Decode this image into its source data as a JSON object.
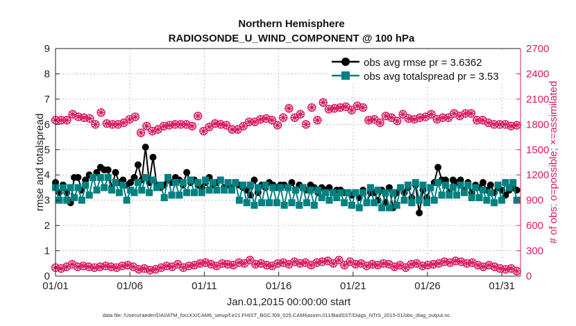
{
  "chart_data": {
    "type": "line",
    "title_lines": [
      "Northern Hemisphere",
      "RADIOSONDE_U_WIND_COMPONENT @ 100 hPa"
    ],
    "xlabel": "Jan.01,2015 00:00:00 start",
    "ylabel_left": "rmse and totalspread",
    "ylabel_right": "# of obs: o=possible; ×=assimilated",
    "footer": "data file: /Users/raeder/DAI/ATM_forcXX/CAM6_setup/f.e21.FHIST_BGC.f09_025.CAM6assim.011/BadSST/Diags_NTrS_2015-01/obs_diag_output.nc",
    "x_tick_labels": [
      "01/01",
      "01/06",
      "01/11",
      "01/16",
      "01/21",
      "01/26",
      "01/31"
    ],
    "x_tick_days": [
      0,
      5,
      10,
      15,
      20,
      25,
      30
    ],
    "xlim": [
      0,
      31.25
    ],
    "ylim_left": [
      0,
      9
    ],
    "y_ticks_left": [
      "0",
      "1",
      "2",
      "3",
      "4",
      "5",
      "6",
      "7",
      "8",
      "9"
    ],
    "ylim_right": [
      0,
      2700
    ],
    "y_ticks_right": [
      "0",
      "300",
      "600",
      "900",
      "1200",
      "1500",
      "1800",
      "2100",
      "2400",
      "2700"
    ],
    "legend": {
      "position": "top-right",
      "entries": [
        "obs avg rmse pr = 3.6362",
        "obs avg totalspread pr = 3.53"
      ]
    },
    "colors": {
      "rmse": "#000000",
      "spread": "#008080",
      "counts": "#d81b60"
    },
    "series": [
      {
        "name": "obs avg rmse",
        "axis": "left",
        "values": [
          3.7,
          3.3,
          3.6,
          3.3,
          2.9,
          3.9,
          3.9,
          3.4,
          3.8,
          4.0,
          3.9,
          4.1,
          4.3,
          4.2,
          4.2,
          3.5,
          4.1,
          3.7,
          3.8,
          3.6,
          3.7,
          3.9,
          4.4,
          3.8,
          5.1,
          3.7,
          4.7,
          3.6,
          3.5,
          3.6,
          3.8,
          3.7,
          3.9,
          3.8,
          3.6,
          4.1,
          3.7,
          3.8,
          3.6,
          3.5,
          3.7,
          3.9,
          3.6,
          3.7,
          3.8,
          3.5,
          3.6,
          3.5,
          3.7,
          3.6,
          3.5,
          3.4,
          3.2,
          3.8,
          3.3,
          3.6,
          3.5,
          3.7,
          3.6,
          3.5,
          3.6,
          3.6,
          3.5,
          3.7,
          3.4,
          3.6,
          3.5,
          3.4,
          3.6,
          3.5,
          3.3,
          3.5,
          3.4,
          3.5,
          3.3,
          3.4,
          3.4,
          3.3,
          3.3,
          3.2,
          3.3,
          3.1,
          3.4,
          2.9,
          3.3,
          3.3,
          3.0,
          3.4,
          2.9,
          3.5,
          2.7,
          3.3,
          3.5,
          3.3,
          3.5,
          3.1,
          3.6,
          2.5,
          3.4,
          3.1,
          3.5,
          3.7,
          4.3,
          3.8,
          3.8,
          3.3,
          3.8,
          3.7,
          3.8,
          3.4,
          3.7,
          3.3,
          3.6,
          3.5,
          3.7,
          3.4,
          3.6,
          3.3,
          3.5,
          3.4,
          3.2,
          3.4,
          3.5,
          3.4
        ]
      },
      {
        "name": "obs avg totalspread",
        "axis": "left",
        "values": [
          3.5,
          3.0,
          3.5,
          3.0,
          3.5,
          3.1,
          3.5,
          3.0,
          3.6,
          3.2,
          3.9,
          3.4,
          3.9,
          3.5,
          3.9,
          3.4,
          3.7,
          3.3,
          3.6,
          3.0,
          3.4,
          3.3,
          3.7,
          3.4,
          3.9,
          3.3,
          3.8,
          3.5,
          3.6,
          3.1,
          3.9,
          3.2,
          3.7,
          3.2,
          3.7,
          3.3,
          3.8,
          3.3,
          3.7,
          3.3,
          3.8,
          3.4,
          3.7,
          3.4,
          3.8,
          3.4,
          3.7,
          3.4,
          3.7,
          3.0,
          3.6,
          2.9,
          3.6,
          2.8,
          3.5,
          2.9,
          3.6,
          2.9,
          3.5,
          2.9,
          3.5,
          2.8,
          3.5,
          2.9,
          3.4,
          2.8,
          3.5,
          2.9,
          3.4,
          2.8,
          3.4,
          3.1,
          3.3,
          3.0,
          3.3,
          3.1,
          3.3,
          2.9,
          3.3,
          2.8,
          3.3,
          2.7,
          3.3,
          2.9,
          3.5,
          2.9,
          3.4,
          2.7,
          3.3,
          2.7,
          3.3,
          2.8,
          3.5,
          3.0,
          3.6,
          2.9,
          3.7,
          3.0,
          3.6,
          2.9,
          3.5,
          3.0,
          3.7,
          3.2,
          3.6,
          3.2,
          3.5,
          3.2,
          3.6,
          3.3,
          3.6,
          3.1,
          3.5,
          3.1,
          3.4,
          3.0,
          3.3,
          2.9,
          3.6,
          3.0,
          3.7,
          3.5,
          3.7,
          3.0
        ]
      },
      {
        "name": "# obs possible",
        "axis": "right",
        "values": [
          1850,
          1850,
          1850,
          1920,
          1890,
          1880,
          1870,
          1800,
          1940,
          1810,
          1800,
          1800,
          1820,
          1860,
          1890,
          1700,
          1780,
          1720,
          1740,
          1780,
          1790,
          1800,
          1800,
          1800,
          1780,
          1900,
          1720,
          1770,
          1810,
          1800,
          1790,
          1740,
          1740,
          1780,
          1830,
          1830,
          1860,
          1870,
          1850,
          1790,
          1880,
          1990,
          1880,
          1920,
          1800,
          2000,
          1850,
          2060,
          1980,
          1990,
          2000,
          2010,
          1970,
          2020,
          2000,
          1850,
          1860,
          1820,
          1900,
          1880,
          1840,
          1920,
          1870,
          1860,
          1880,
          1890,
          1920,
          1860,
          1880,
          1880,
          1930,
          1900,
          1930,
          1930,
          1850,
          1850,
          1820,
          1800,
          1800,
          1800,
          1780,
          1790
        ]
      },
      {
        "name": "# obs assimilated",
        "axis": "right",
        "values": [
          1850,
          1850,
          1850,
          1920,
          1890,
          1880,
          1870,
          1800,
          1940,
          1810,
          1800,
          1800,
          1820,
          1860,
          1890,
          1700,
          1780,
          1720,
          1740,
          1780,
          1790,
          1800,
          1800,
          1800,
          1780,
          1900,
          1720,
          1770,
          1810,
          1800,
          1790,
          1740,
          1740,
          1780,
          1830,
          1830,
          1860,
          1870,
          1850,
          1790,
          1880,
          1990,
          1880,
          1920,
          1800,
          2000,
          1850,
          2060,
          1980,
          1990,
          2000,
          2010,
          1970,
          2020,
          2000,
          1850,
          1860,
          1820,
          1900,
          1880,
          1840,
          1920,
          1870,
          1860,
          1880,
          1890,
          1920,
          1860,
          1880,
          1880,
          1930,
          1900,
          1930,
          1930,
          1850,
          1850,
          1820,
          1800,
          1800,
          1800,
          1780,
          1790
        ]
      },
      {
        "name": "# obs lower cluster",
        "axis": "right",
        "values": [
          100,
          90,
          110,
          140,
          110,
          120,
          110,
          100,
          110,
          120,
          110,
          100,
          120,
          130,
          110,
          80,
          90,
          70,
          80,
          100,
          120,
          110,
          140,
          100,
          120,
          130,
          150,
          160,
          140,
          120,
          150,
          140,
          130,
          160,
          150,
          190,
          140,
          150,
          130,
          120,
          150,
          160,
          140,
          170,
          150,
          160,
          130,
          160,
          170,
          180,
          150,
          190,
          130,
          170,
          140,
          150,
          120,
          140,
          130,
          150,
          140,
          110,
          130,
          100,
          140,
          150,
          120,
          130,
          140,
          150,
          170,
          160,
          180,
          170,
          150,
          160,
          130,
          110,
          130,
          110,
          90,
          80,
          90,
          60
        ]
      }
    ]
  }
}
